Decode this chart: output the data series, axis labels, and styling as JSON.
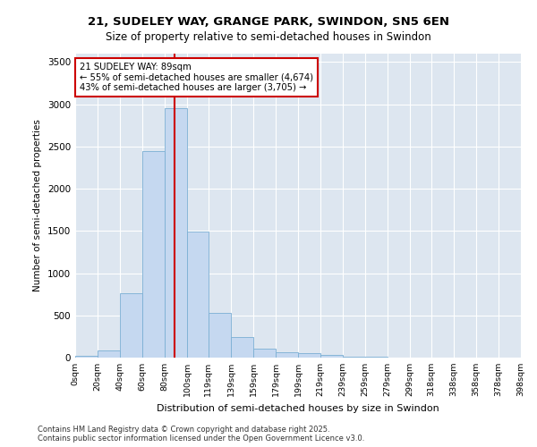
{
  "title_line1": "21, SUDELEY WAY, GRANGE PARK, SWINDON, SN5 6EN",
  "title_line2": "Size of property relative to semi-detached houses in Swindon",
  "xlabel": "Distribution of semi-detached houses by size in Swindon",
  "ylabel": "Number of semi-detached properties",
  "property_size": 89,
  "annotation_title": "21 SUDELEY WAY: 89sqm",
  "annotation_line1": "← 55% of semi-detached houses are smaller (4,674)",
  "annotation_line2": "43% of semi-detached houses are larger (3,705) →",
  "footnote1": "Contains HM Land Registry data © Crown copyright and database right 2025.",
  "footnote2": "Contains public sector information licensed under the Open Government Licence v3.0.",
  "bar_color": "#c5d8f0",
  "bar_edge_color": "#7bafd4",
  "vline_color": "#cc0000",
  "annotation_box_color": "#cc0000",
  "background_color": "#dde6f0",
  "grid_color": "#ffffff",
  "bins": [
    0,
    20,
    40,
    60,
    80,
    100,
    119,
    139,
    159,
    179,
    199,
    219,
    239,
    259,
    279,
    299,
    318,
    338,
    358,
    378,
    398
  ],
  "counts": [
    20,
    90,
    760,
    2450,
    2950,
    1490,
    530,
    240,
    110,
    60,
    50,
    30,
    15,
    8,
    5,
    3,
    2,
    1,
    0,
    0
  ],
  "ylim": [
    0,
    3600
  ],
  "yticks": [
    0,
    500,
    1000,
    1500,
    2000,
    2500,
    3000,
    3500
  ]
}
